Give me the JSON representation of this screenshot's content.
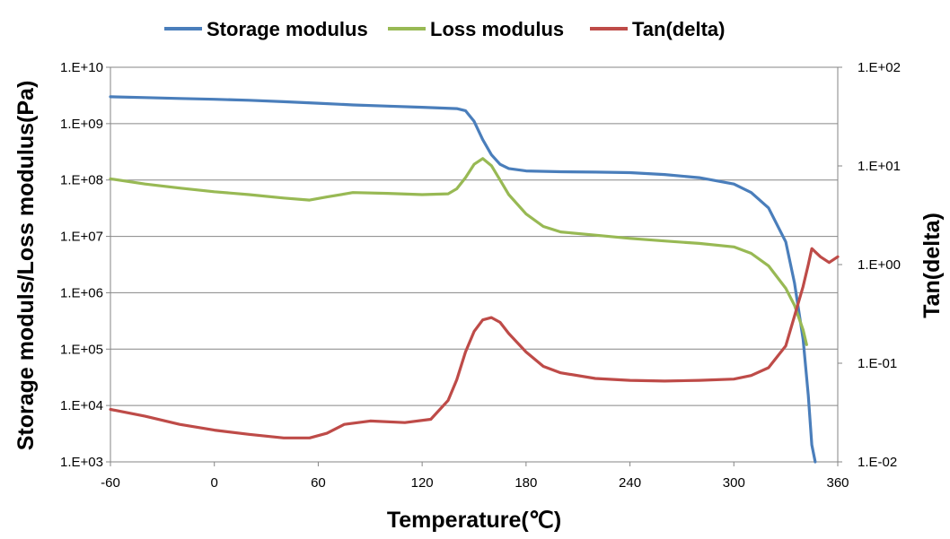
{
  "chart_data": {
    "type": "line",
    "xlabel": "Temperature(℃)",
    "ylabel": "Storage moduls/Loss modulus(Pa)",
    "y2label": "Tan(delta)",
    "xlim": [
      -60,
      360
    ],
    "ylim": [
      1000,
      10000000000
    ],
    "y2lim": [
      0.01,
      100
    ],
    "yscale": "log",
    "y2scale": "log",
    "xticks": [
      "-60",
      "0",
      "60",
      "120",
      "180",
      "240",
      "300",
      "360"
    ],
    "xtick_values": [
      -60,
      0,
      60,
      120,
      180,
      240,
      300,
      360
    ],
    "yticks": [
      "1.E+03",
      "1.E+04",
      "1.E+05",
      "1.E+06",
      "1.E+07",
      "1.E+08",
      "1.E+09",
      "1.E+10"
    ],
    "y2ticks": [
      "1.E-02",
      "1.E-01",
      "1.E+00",
      "1.E+01",
      "1.E+02"
    ],
    "grid": true,
    "legend": "top",
    "series": [
      {
        "name": "Storage modulus",
        "color": "#4a7ebb",
        "axis": "left",
        "x": [
          -60,
          -40,
          -20,
          0,
          20,
          40,
          60,
          80,
          100,
          120,
          140,
          145,
          150,
          155,
          160,
          165,
          170,
          180,
          200,
          220,
          240,
          260,
          280,
          300,
          310,
          320,
          330,
          335,
          340,
          343,
          345,
          347
        ],
        "y": [
          3000000000,
          2900000000,
          2800000000,
          2700000000,
          2600000000,
          2450000000,
          2300000000,
          2150000000,
          2050000000,
          1950000000,
          1850000000,
          1700000000,
          1100000000,
          520000000,
          280000000,
          190000000,
          160000000,
          145000000,
          140000000,
          138000000,
          135000000,
          125000000,
          110000000,
          85000000,
          60000000,
          32000000,
          8000000,
          1500000,
          150000,
          15000,
          2000,
          1000
        ]
      },
      {
        "name": "Loss modulus",
        "color": "#98b954",
        "axis": "left",
        "x": [
          -60,
          -40,
          -20,
          0,
          20,
          40,
          55,
          65,
          80,
          100,
          120,
          135,
          140,
          145,
          150,
          155,
          160,
          165,
          170,
          180,
          190,
          200,
          220,
          240,
          260,
          280,
          300,
          310,
          320,
          330,
          335,
          340,
          342
        ],
        "y": [
          105000000,
          85000000,
          72000000,
          62000000,
          55000000,
          48000000,
          44000000,
          50000000,
          60000000,
          58000000,
          55000000,
          57000000,
          70000000,
          110000000,
          190000000,
          240000000,
          180000000,
          100000000,
          55000000,
          25000000,
          15000000,
          12000000,
          10500000,
          9200000,
          8300000,
          7500000,
          6500000,
          5000000,
          3000000,
          1200000,
          600000,
          220000,
          120000
        ]
      },
      {
        "name": "Tan(delta)",
        "color": "#be4b48",
        "axis": "right",
        "x": [
          -60,
          -40,
          -20,
          0,
          20,
          40,
          55,
          65,
          75,
          90,
          110,
          125,
          135,
          140,
          145,
          150,
          155,
          160,
          165,
          170,
          180,
          190,
          200,
          220,
          240,
          260,
          280,
          300,
          310,
          320,
          330,
          335,
          340,
          343,
          345,
          350,
          355,
          360
        ],
        "y": [
          0.034,
          0.029,
          0.024,
          0.021,
          0.019,
          0.0175,
          0.0175,
          0.0195,
          0.024,
          0.026,
          0.025,
          0.027,
          0.042,
          0.068,
          0.13,
          0.21,
          0.275,
          0.29,
          0.26,
          0.2,
          0.13,
          0.093,
          0.08,
          0.07,
          0.067,
          0.066,
          0.067,
          0.069,
          0.075,
          0.09,
          0.15,
          0.3,
          0.6,
          1.0,
          1.45,
          1.2,
          1.05,
          1.2
        ]
      }
    ]
  }
}
